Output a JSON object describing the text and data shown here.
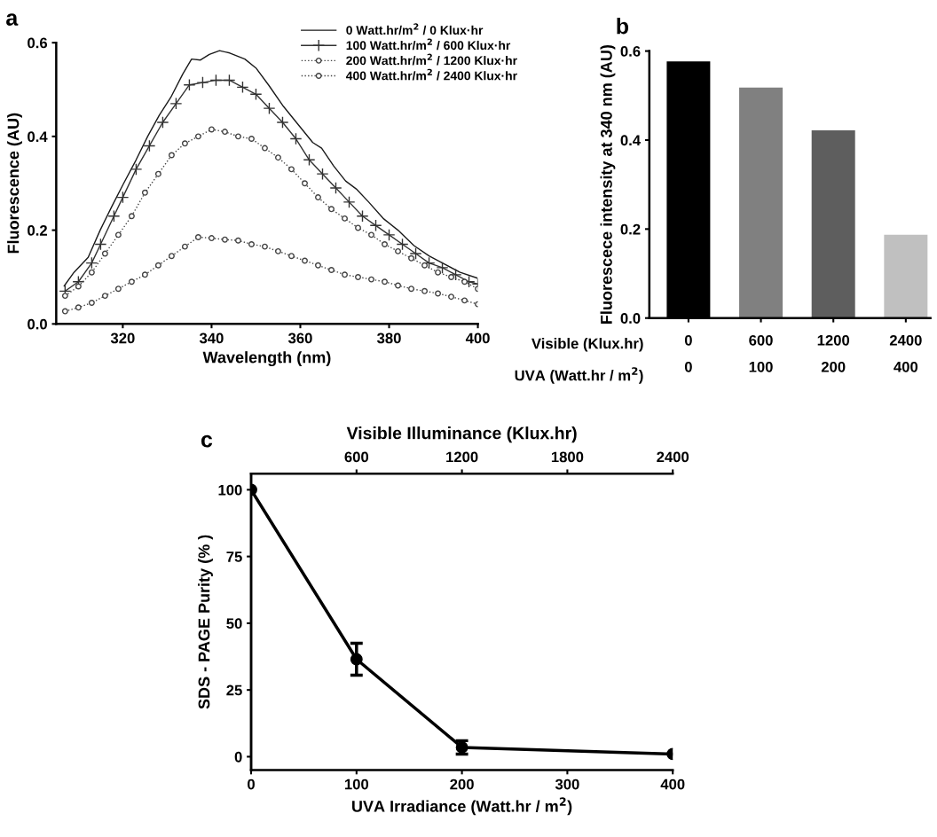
{
  "chart_data": [
    {
      "type": "line",
      "title": "a",
      "xlabel": "Wavelength (nm)",
      "ylabel": "Fluorescence (AU)",
      "xlim": [
        305,
        400
      ],
      "xticks": [
        320,
        340,
        360,
        380,
        400
      ],
      "ylim": [
        0,
        0.6
      ],
      "yticks": [
        {
          "value": 0,
          "label": "0.0"
        },
        0.2,
        0.4,
        0.6
      ],
      "grid": false,
      "legend": "top right",
      "series": [
        {
          "name": "0 Watt.hr/m$^{2}$ / 0 Klux·hr",
          "color": "#1a1a1a",
          "marker": "none",
          "line_style": "solid",
          "x": [
            306.8,
            309,
            312.2,
            314.9,
            317.5,
            320.2,
            323,
            325.6,
            328.2,
            330.8,
            333.5,
            335.5,
            337.5,
            339.5,
            341.8,
            344.1,
            347.5,
            350,
            352.9,
            356.2,
            359.8,
            362.8,
            364.8,
            367.5,
            370.2,
            372.6,
            375.4,
            378.8,
            382,
            385.6,
            389,
            392.2,
            396,
            399.8
          ],
          "values": [
            0.081,
            0.11,
            0.142,
            0.2,
            0.25,
            0.3,
            0.35,
            0.4,
            0.445,
            0.483,
            0.533,
            0.565,
            0.563,
            0.575,
            0.583,
            0.578,
            0.565,
            0.546,
            0.509,
            0.464,
            0.422,
            0.387,
            0.375,
            0.337,
            0.305,
            0.288,
            0.26,
            0.224,
            0.2,
            0.167,
            0.145,
            0.129,
            0.11,
            0.098
          ]
        },
        {
          "name": "100 Watt.hr/m$^{2}$ / 600 Klux·hr",
          "color": "#333333",
          "marker": "cross",
          "line_style": "solid",
          "x": [
            307,
            310,
            313,
            315,
            318,
            320,
            323,
            326,
            329,
            332,
            335,
            338,
            341,
            344,
            347,
            350,
            353,
            356,
            359,
            362,
            365,
            368,
            371,
            374,
            377,
            380,
            383,
            386,
            389,
            392,
            395,
            398,
            400
          ],
          "values": [
            0.07,
            0.09,
            0.13,
            0.17,
            0.23,
            0.27,
            0.33,
            0.38,
            0.43,
            0.47,
            0.51,
            0.515,
            0.52,
            0.52,
            0.505,
            0.49,
            0.46,
            0.43,
            0.395,
            0.35,
            0.32,
            0.29,
            0.26,
            0.23,
            0.21,
            0.19,
            0.17,
            0.15,
            0.13,
            0.12,
            0.105,
            0.09,
            0.085
          ]
        },
        {
          "name": "200 Watt.hr/m$^{2}$ / 1200 Klux·hr",
          "color": "#444444",
          "marker": "circle",
          "line_style": "dotted",
          "x": [
            307,
            310,
            313,
            316,
            319,
            322,
            325,
            328,
            331,
            334,
            337,
            340,
            343,
            346,
            349,
            352,
            355,
            358,
            361,
            364,
            367,
            370,
            373,
            376,
            379,
            382,
            385,
            388,
            391,
            394,
            397,
            400
          ],
          "values": [
            0.06,
            0.08,
            0.11,
            0.15,
            0.19,
            0.23,
            0.28,
            0.32,
            0.36,
            0.385,
            0.4,
            0.415,
            0.41,
            0.4,
            0.395,
            0.375,
            0.355,
            0.33,
            0.3,
            0.27,
            0.245,
            0.225,
            0.205,
            0.19,
            0.17,
            0.155,
            0.14,
            0.125,
            0.11,
            0.1,
            0.09,
            0.075
          ]
        },
        {
          "name": "400 Watt.hr/m$^{2}$ / 2400 Klux·hr",
          "color": "#444444",
          "marker": "circle",
          "line_style": "dotted",
          "x": [
            307,
            310,
            313,
            316,
            319,
            322,
            325,
            328,
            331,
            334,
            337,
            340,
            343,
            346,
            349,
            352,
            355,
            358,
            361,
            364,
            367,
            370,
            373,
            376,
            379,
            382,
            385,
            388,
            391,
            394,
            397,
            400
          ],
          "values": [
            0.027,
            0.035,
            0.045,
            0.06,
            0.075,
            0.09,
            0.105,
            0.125,
            0.145,
            0.165,
            0.185,
            0.183,
            0.18,
            0.178,
            0.17,
            0.165,
            0.155,
            0.145,
            0.135,
            0.125,
            0.115,
            0.105,
            0.1,
            0.095,
            0.09,
            0.082,
            0.075,
            0.07,
            0.065,
            0.058,
            0.05,
            0.042
          ]
        }
      ]
    },
    {
      "type": "bar",
      "title": "b",
      "ylabel": "Fluorescece intensity at 340 nm (AU)",
      "categories": [
        "0\n0",
        "600\n100",
        "1200\n200",
        "2400\n400"
      ],
      "annotations": [
        "Visible (Klux.hr)",
        "UVA (Watt.hr / m$^{2}$)"
      ],
      "values": [
        0.577,
        0.518,
        0.422,
        0.187
      ],
      "colors": [
        "#000000",
        "#808080",
        "#5e5e5e",
        "#c0c0c0"
      ],
      "ylim": [
        0,
        0.6
      ],
      "yticks": [
        {
          "value": 0,
          "label": "0.0"
        },
        0.2,
        0.4,
        0.6
      ],
      "grid": false
    },
    {
      "type": "line",
      "title": "c",
      "xlabel": "UVA Irradiance (Watt.hr / m$^{2}$)",
      "x2label": "Visible Illuminance (Klux.hr)",
      "ylabel": "SDS - PAGE Purity (% )",
      "x": [
        0,
        100,
        200,
        400
      ],
      "series": [
        {
          "color": "#000000",
          "values": [
            100,
            36.5,
            3.5,
            1
          ],
          "errors": [
            null,
            6,
            2.5,
            null
          ]
        }
      ],
      "xlim": [
        0,
        400
      ],
      "xticks": [
        0,
        100,
        200,
        300,
        400
      ],
      "x2lim": [
        0,
        2400
      ],
      "x2ticks": [
        600,
        1200,
        1800,
        2400
      ],
      "ylim": [
        -5,
        106
      ],
      "yticks": [
        0,
        25,
        50,
        75,
        100
      ],
      "marker": "circle",
      "grid": false
    }
  ]
}
